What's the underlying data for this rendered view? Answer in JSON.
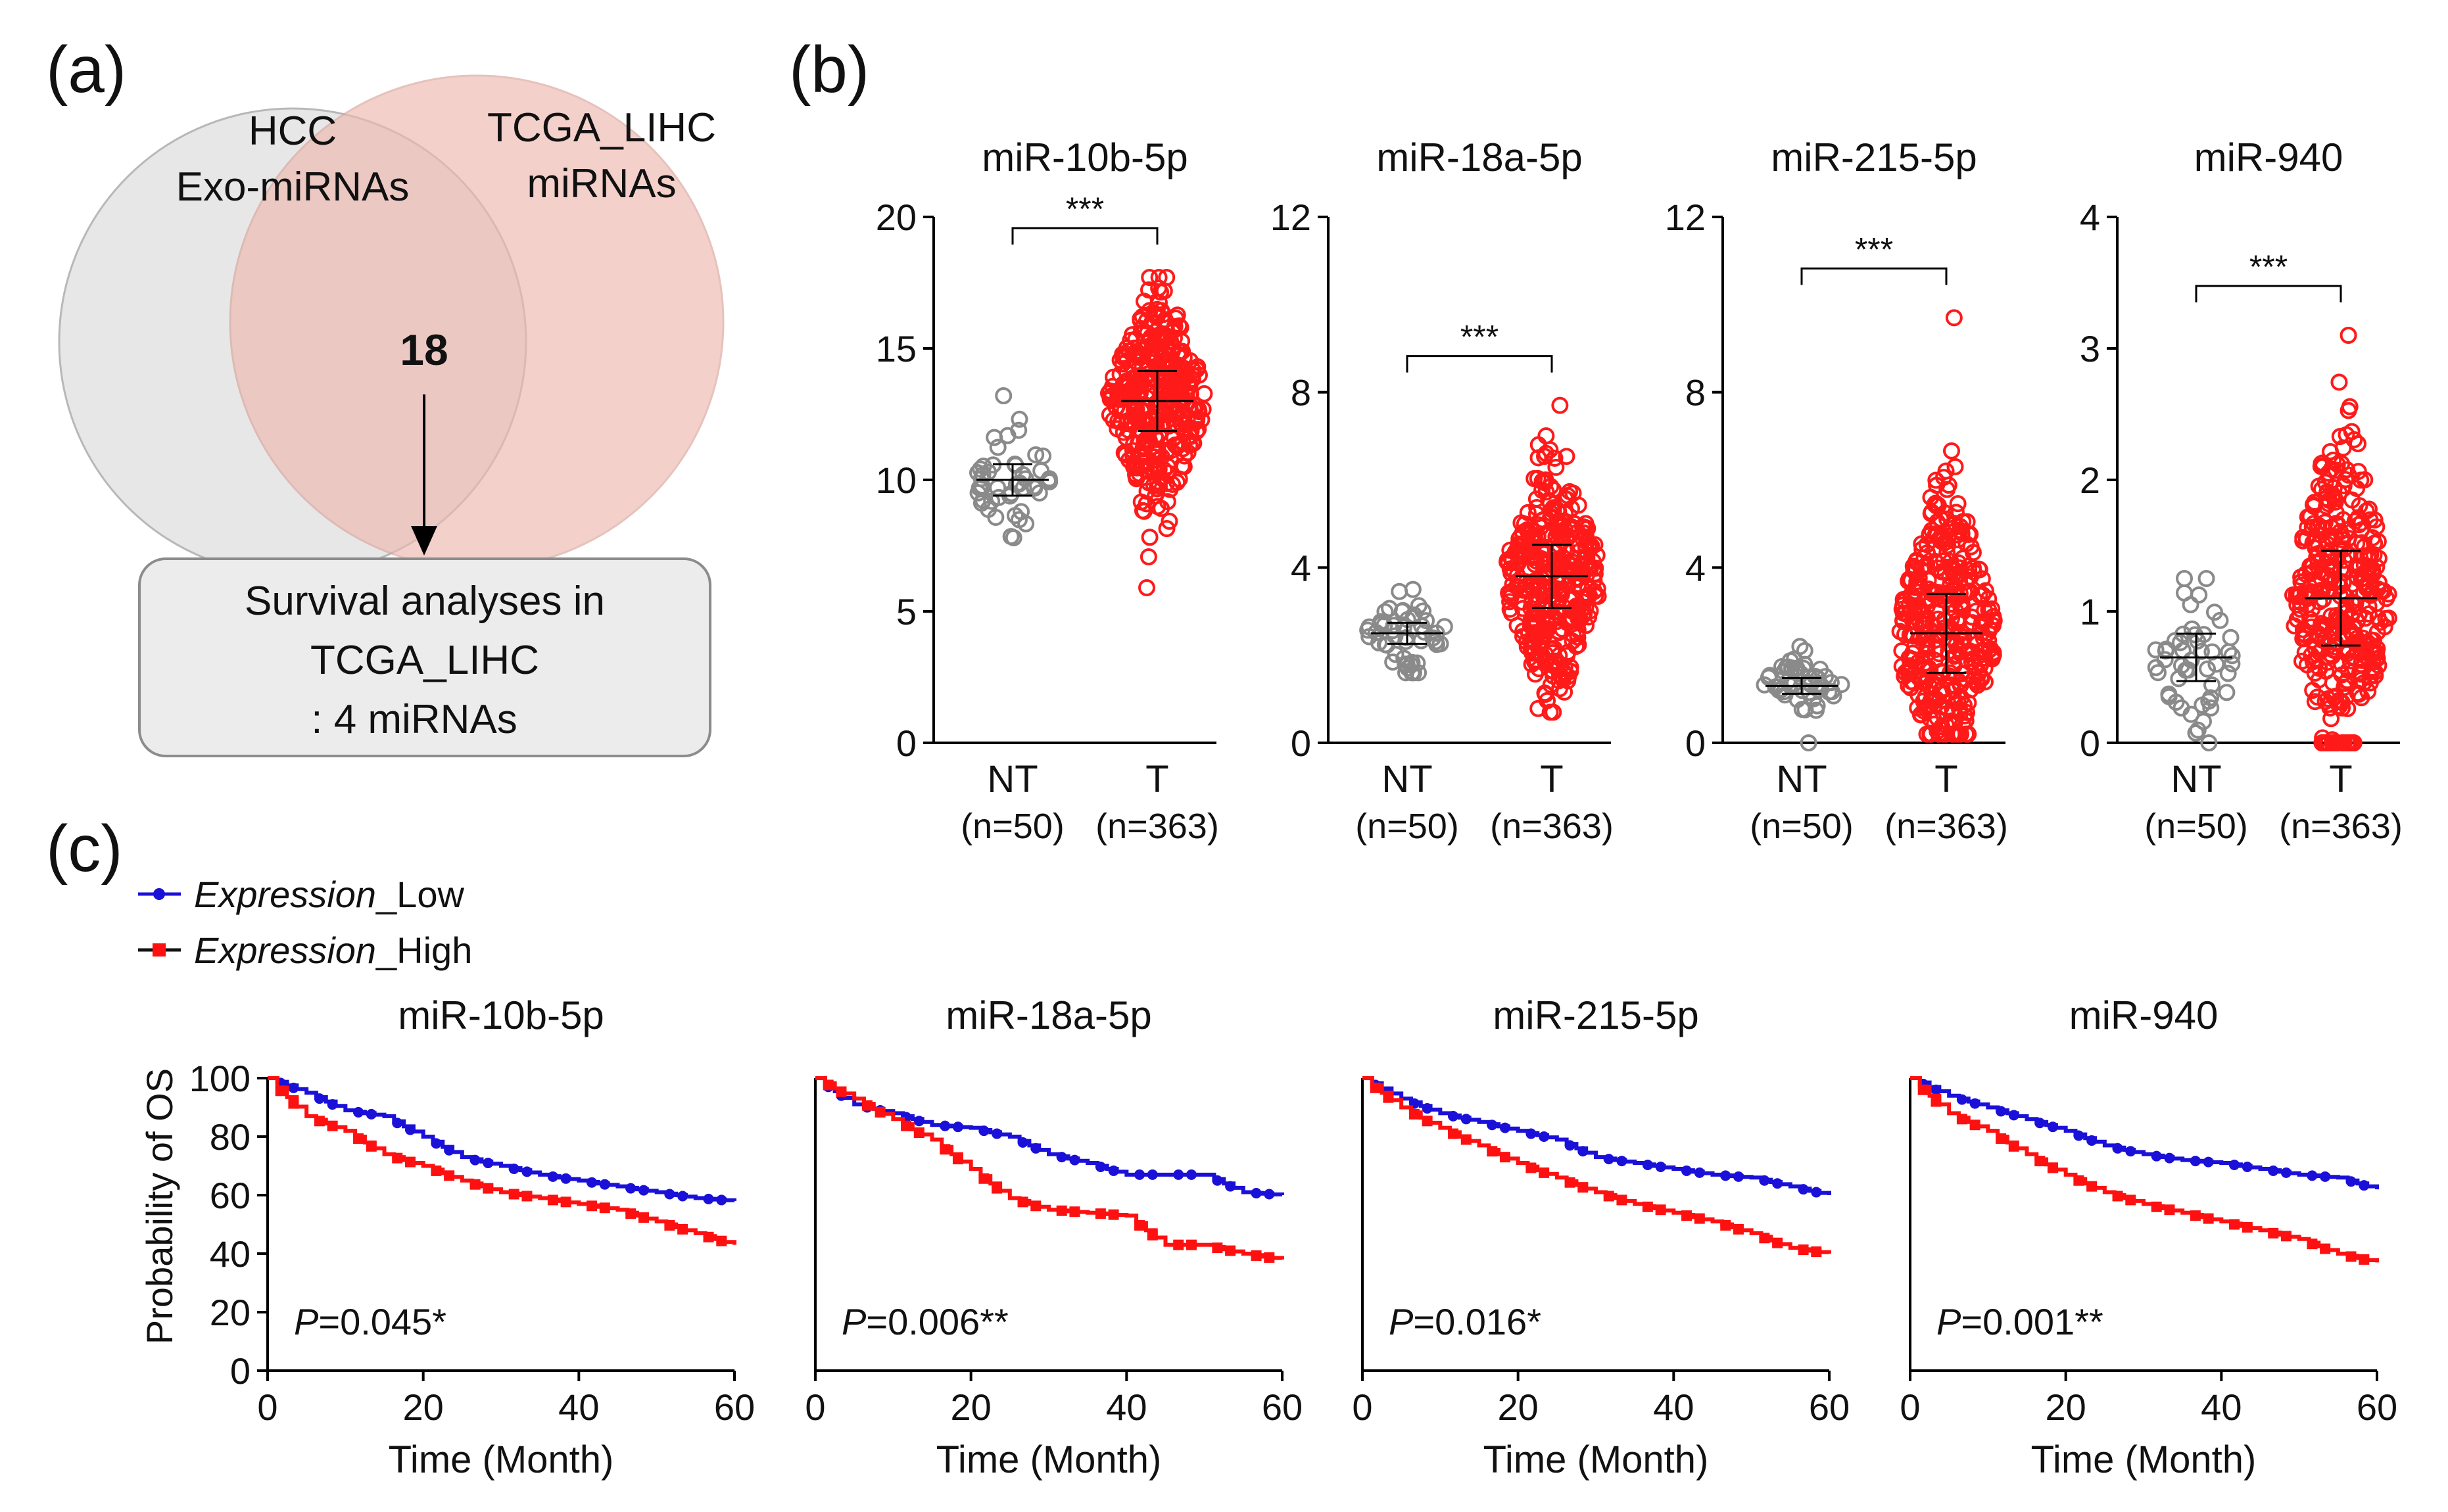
{
  "colors": {
    "nt": "#8a8a8a",
    "t": "#ff1a1a",
    "low": "#1a10d8",
    "high": "#ff1010",
    "venn_left": "#e6e6e6",
    "venn_right": "#efb8b0",
    "box_fill": "#ececec"
  },
  "panel_a": {
    "label": "(a)",
    "left_set": {
      "line1": "HCC",
      "line2": "Exo-miRNAs"
    },
    "right_set": {
      "line1": "TCGA_LIHC",
      "line2": "miRNAs"
    },
    "overlap_count": "18",
    "result_box": {
      "line1": "Survival analyses in",
      "line2": "TCGA_LIHC",
      "line3": ":  4 miRNAs"
    }
  },
  "panel_b": {
    "label": "(b)"
  },
  "panel_c": {
    "label": "(c)",
    "legend": [
      {
        "italic": "Expression",
        "suffix": "_Low"
      },
      {
        "italic": "Expression",
        "suffix": "_High"
      }
    ],
    "y_axis_label": "Probability of OS",
    "x_axis_label": "Time (Month)"
  },
  "chart_data": [
    {
      "type": "scatter",
      "title": "miR-10b-5p",
      "categories": [
        "NT",
        "T"
      ],
      "category_counts": [
        "(n=50)",
        "(n=363)"
      ],
      "ylim": [
        0,
        20
      ],
      "yticks": [
        0,
        5,
        10,
        15,
        20
      ],
      "significance": "***",
      "series": [
        {
          "name": "NT",
          "n": 50,
          "mean": 10.0,
          "sd": 1.0,
          "min": 7.8,
          "max": 13.2
        },
        {
          "name": "T",
          "n": 363,
          "mean": 13.0,
          "sd": 1.9,
          "min": 5.9,
          "max": 17.7
        }
      ]
    },
    {
      "type": "scatter",
      "title": "miR-18a-5p",
      "categories": [
        "NT",
        "T"
      ],
      "category_counts": [
        "(n=50)",
        "(n=363)"
      ],
      "ylim": [
        0,
        12
      ],
      "yticks": [
        0,
        4,
        8,
        12
      ],
      "significance": "***",
      "series": [
        {
          "name": "NT",
          "n": 50,
          "mean": 2.5,
          "sd": 0.4,
          "min": 1.6,
          "max": 3.5
        },
        {
          "name": "T",
          "n": 363,
          "mean": 3.8,
          "sd": 1.2,
          "min": 0.7,
          "max": 7.7
        }
      ]
    },
    {
      "type": "scatter",
      "title": "miR-215-5p",
      "categories": [
        "NT",
        "T"
      ],
      "category_counts": [
        "(n=50)",
        "(n=363)"
      ],
      "ylim": [
        0,
        12
      ],
      "yticks": [
        0,
        4,
        8,
        12
      ],
      "significance": "***",
      "series": [
        {
          "name": "NT",
          "n": 50,
          "mean": 1.3,
          "sd": 0.3,
          "min": 0.0,
          "max": 2.2
        },
        {
          "name": "T",
          "n": 363,
          "mean": 2.5,
          "sd": 1.5,
          "min": 0.2,
          "max": 9.7
        }
      ]
    },
    {
      "type": "scatter",
      "title": "miR-940",
      "categories": [
        "NT",
        "T"
      ],
      "category_counts": [
        "(n=50)",
        "(n=363)"
      ],
      "ylim": [
        0,
        4
      ],
      "yticks": [
        0,
        1,
        2,
        3,
        4
      ],
      "significance": "***",
      "series": [
        {
          "name": "NT",
          "n": 50,
          "mean": 0.65,
          "sd": 0.3,
          "min": 0.0,
          "max": 1.25
        },
        {
          "name": "T",
          "n": 363,
          "mean": 1.1,
          "sd": 0.6,
          "min": 0.0,
          "max": 3.1
        }
      ]
    },
    {
      "type": "line",
      "title": "miR-10b-5p",
      "xlabel": "Time (Month)",
      "ylabel": "Probability of OS",
      "xlim": [
        0,
        60
      ],
      "ylim": [
        0,
        100
      ],
      "xticks": [
        0,
        20,
        40,
        60
      ],
      "yticks": [
        0,
        20,
        40,
        60,
        80,
        100
      ],
      "annotation": {
        "italic": "P",
        "text": "=0.045*"
      },
      "series": [
        {
          "name": "Expression_Low",
          "x": [
            0,
            5,
            10,
            15,
            20,
            25,
            30,
            35,
            40,
            45,
            50,
            55,
            60
          ],
          "y": [
            100,
            95,
            89,
            87,
            80,
            73,
            70,
            67,
            65,
            63,
            61,
            59,
            58
          ]
        },
        {
          "name": "Expression_High",
          "x": [
            0,
            5,
            10,
            15,
            20,
            25,
            30,
            35,
            40,
            45,
            50,
            55,
            60
          ],
          "y": [
            100,
            87,
            82,
            74,
            70,
            65,
            61,
            59,
            57,
            55,
            51,
            47,
            43
          ]
        }
      ]
    },
    {
      "type": "line",
      "title": "miR-18a-5p",
      "xlabel": "Time (Month)",
      "ylabel": "",
      "xlim": [
        0,
        60
      ],
      "ylim": [
        0,
        100
      ],
      "xticks": [
        0,
        20,
        40,
        60
      ],
      "yticks": [
        0,
        20,
        40,
        60,
        80,
        100
      ],
      "annotation": {
        "italic": "P",
        "text": "=0.006**"
      },
      "series": [
        {
          "name": "Expression_Low",
          "x": [
            0,
            5,
            10,
            15,
            20,
            25,
            30,
            35,
            40,
            45,
            50,
            55,
            60
          ],
          "y": [
            100,
            91,
            88,
            84,
            83,
            80,
            74,
            71,
            67,
            67,
            67,
            61,
            60
          ]
        },
        {
          "name": "Expression_High",
          "x": [
            0,
            5,
            10,
            15,
            20,
            25,
            30,
            35,
            40,
            45,
            50,
            55,
            60
          ],
          "y": [
            100,
            93,
            86,
            79,
            69,
            59,
            55,
            54,
            53,
            43,
            43,
            40,
            38
          ]
        }
      ]
    },
    {
      "type": "line",
      "title": "miR-215-5p",
      "xlabel": "Time (Month)",
      "ylabel": "",
      "xlim": [
        0,
        60
      ],
      "ylim": [
        0,
        100
      ],
      "xticks": [
        0,
        20,
        40,
        60
      ],
      "yticks": [
        0,
        20,
        40,
        60,
        80,
        100
      ],
      "annotation": {
        "italic": "P",
        "text": "=0.016*"
      },
      "series": [
        {
          "name": "Expression_Low",
          "x": [
            0,
            5,
            10,
            15,
            20,
            25,
            30,
            35,
            40,
            45,
            50,
            55,
            60
          ],
          "y": [
            100,
            93,
            88,
            85,
            82,
            79,
            73,
            71,
            69,
            67,
            66,
            63,
            60
          ]
        },
        {
          "name": "Expression_High",
          "x": [
            0,
            5,
            10,
            15,
            20,
            25,
            30,
            35,
            40,
            45,
            50,
            55,
            60
          ],
          "y": [
            100,
            90,
            83,
            77,
            71,
            66,
            61,
            57,
            54,
            51,
            47,
            42,
            40
          ]
        }
      ]
    },
    {
      "type": "line",
      "title": "miR-940",
      "xlabel": "Time (Month)",
      "ylabel": "",
      "xlim": [
        0,
        60
      ],
      "ylim": [
        0,
        100
      ],
      "xticks": [
        0,
        20,
        40,
        60
      ],
      "yticks": [
        0,
        20,
        40,
        60,
        80,
        100
      ],
      "annotation": {
        "italic": "P",
        "text": "=0.001**"
      },
      "series": [
        {
          "name": "Expression_Low",
          "x": [
            0,
            5,
            10,
            15,
            20,
            25,
            30,
            35,
            40,
            45,
            50,
            55,
            60
          ],
          "y": [
            100,
            94,
            90,
            86,
            82,
            77,
            74,
            72,
            71,
            69,
            67,
            66,
            62
          ]
        },
        {
          "name": "Expression_High",
          "x": [
            0,
            5,
            10,
            15,
            20,
            25,
            30,
            35,
            40,
            45,
            50,
            55,
            60
          ],
          "y": [
            100,
            88,
            82,
            74,
            67,
            61,
            57,
            54,
            51,
            48,
            45,
            40,
            37
          ]
        }
      ]
    }
  ]
}
